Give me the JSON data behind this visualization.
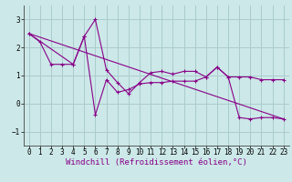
{
  "background_color": "#cce8e8",
  "grid_color": "#aacccc",
  "line_color": "#880088",
  "xlabel": "Windchill (Refroidissement éolien,°C)",
  "xlim": [
    -0.5,
    23.5
  ],
  "ylim": [
    -1.5,
    3.5
  ],
  "yticks": [
    -1,
    0,
    1,
    2,
    3
  ],
  "xticks": [
    0,
    1,
    2,
    3,
    4,
    5,
    6,
    7,
    8,
    9,
    10,
    11,
    12,
    13,
    14,
    15,
    16,
    17,
    18,
    19,
    20,
    21,
    22,
    23
  ],
  "series1_x": [
    0,
    1,
    2,
    3,
    4,
    5,
    6,
    7,
    8,
    9,
    10,
    11,
    12,
    13,
    14,
    15,
    16,
    17,
    18,
    19,
    20,
    21,
    22,
    23
  ],
  "series1_y": [
    2.5,
    2.2,
    1.4,
    1.4,
    1.4,
    2.4,
    3.0,
    1.2,
    0.75,
    0.35,
    0.75,
    1.1,
    1.15,
    1.05,
    1.15,
    1.15,
    0.95,
    1.3,
    0.95,
    0.95,
    0.95,
    0.85,
    0.85,
    0.85
  ],
  "series2_x": [
    0,
    4,
    5,
    6,
    7,
    8,
    9,
    10,
    11,
    12,
    13,
    14,
    15,
    16,
    17,
    18,
    19,
    20,
    21,
    22,
    23
  ],
  "series2_y": [
    2.5,
    1.4,
    2.4,
    -0.4,
    0.85,
    0.4,
    0.5,
    0.7,
    0.75,
    0.75,
    0.8,
    0.8,
    0.8,
    0.95,
    1.3,
    0.95,
    -0.5,
    -0.55,
    -0.5,
    -0.5,
    -0.55
  ],
  "trend_x": [
    0,
    23
  ],
  "trend_y": [
    2.5,
    -0.55
  ],
  "xlabel_fontsize": 6.5,
  "tick_fontsize": 5.5
}
